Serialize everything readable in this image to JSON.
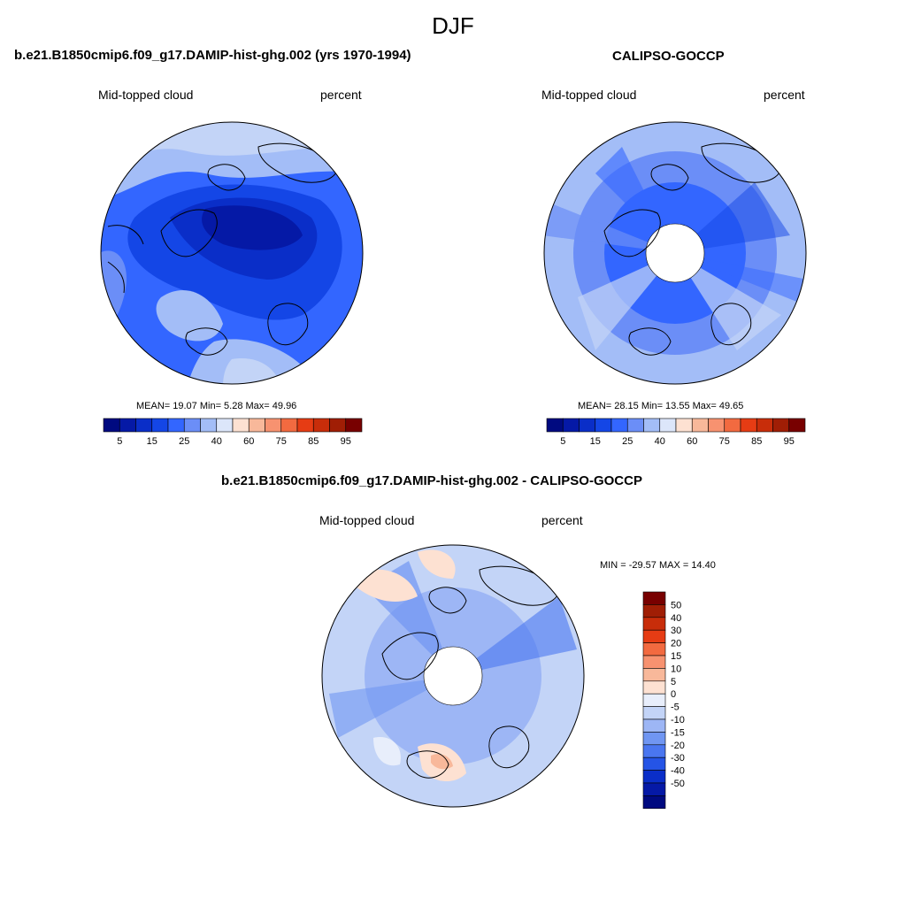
{
  "figure_title": "DJF",
  "panels": [
    {
      "title": "b.e21.B1850cmip6.f09_g17.DAMIP-hist-ghg.002 (yrs 1970-1994)",
      "left_label": "Mid-topped cloud",
      "right_label": "percent",
      "stats": {
        "mean": "19.07",
        "min": "5.28",
        "max": "49.96"
      },
      "stats_text": "MEAN=  19.07  Min=   5.28  Max=  49.96",
      "field_description": "dominant deep blue over Arctic Ocean and Siberia, lighter blue over Greenland, NE Canada and mid-latitude rim",
      "has_polar_hole": false
    },
    {
      "title": "CALIPSO-GOCCP",
      "left_label": "Mid-topped cloud",
      "right_label": "percent",
      "stats": {
        "mean": "28.15",
        "min": "13.55",
        "max": "49.65"
      },
      "stats_text": "MEAN=  28.15  Min=  13.55  Max=  49.65",
      "has_polar_hole": true
    },
    {
      "title": "b.e21.B1850cmip6.f09_g17.DAMIP-hist-ghg.002 - CALIPSO-GOCCP",
      "left_label": "Mid-topped cloud",
      "right_label": "percent",
      "stats": {
        "min": "-29.57",
        "max": "14.40"
      },
      "stats_text": "MIN = -29.57 MAX =  14.40",
      "has_polar_hole": true
    }
  ],
  "colorbar_abs": {
    "colors": [
      "#000a80",
      "#0519a6",
      "#0a2ec8",
      "#1446e6",
      "#3366ff",
      "#6b8ef7",
      "#a3bdf7",
      "#dce6fa",
      "#fde1d2",
      "#f8b89a",
      "#f79270",
      "#f26a40",
      "#e63c14",
      "#c82d0a",
      "#a01e05",
      "#780000"
    ],
    "tick_labels": [
      "5",
      "15",
      "25",
      "40",
      "60",
      "75",
      "85",
      "95"
    ]
  },
  "colorbar_diff": {
    "colors": [
      "#780000",
      "#a01e05",
      "#c82d0a",
      "#e63c14",
      "#f26a40",
      "#f79270",
      "#f8b89a",
      "#fde1d2",
      "#e8eefb",
      "#c3d4f7",
      "#9db6f5",
      "#7096f2",
      "#4a76f0",
      "#2554e6",
      "#0a2ec8",
      "#0519a6",
      "#000a80"
    ],
    "tick_labels": [
      "50",
      "40",
      "30",
      "20",
      "15",
      "10",
      "5",
      "0",
      "-5",
      "-10",
      "-15",
      "-20",
      "-30",
      "-40",
      "-50"
    ]
  },
  "colors": {
    "deep_blue": "#0a2ec8",
    "mid_blue": "#3366ff",
    "light_blue": "#a3bdf7",
    "pale_blue": "#c3d4f7",
    "pale_red": "#fde1d2"
  }
}
